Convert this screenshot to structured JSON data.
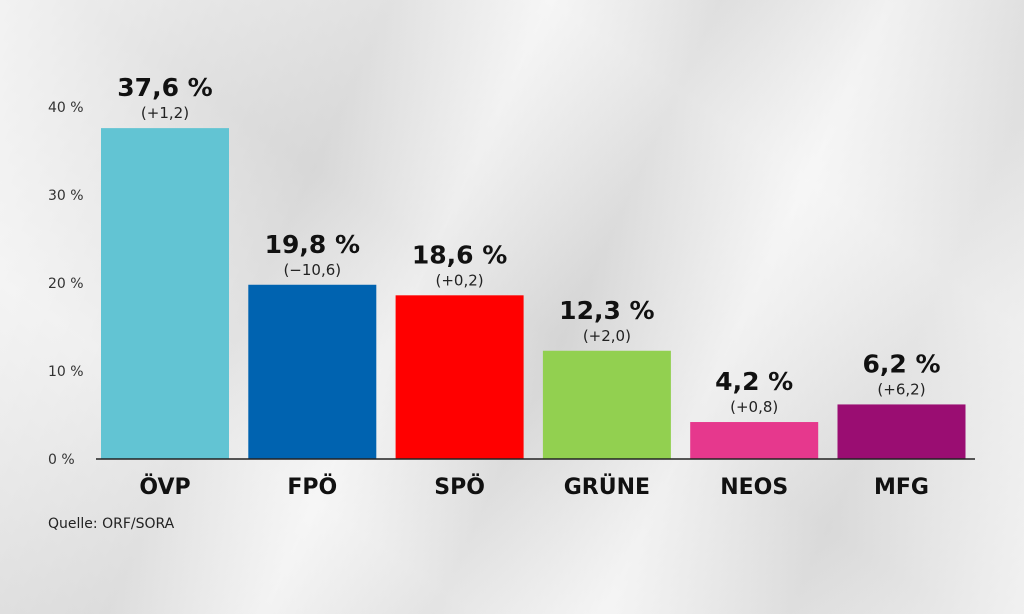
{
  "chart_data": {
    "type": "bar",
    "categories": [
      "ÖVP",
      "FPÖ",
      "SPÖ",
      "GRÜNE",
      "NEOS",
      "MFG"
    ],
    "values": [
      37.6,
      19.8,
      18.6,
      12.3,
      4.2,
      6.2
    ],
    "value_labels": [
      "37,6 %",
      "19,8 %",
      "18,6 %",
      "12,3 %",
      "4,2 %",
      "6,2 %"
    ],
    "change_labels": [
      "(+1,2)",
      "(−10,6)",
      "(+0,2)",
      "(+2,0)",
      "(+0,8)",
      "(+6,2)"
    ],
    "colors": [
      "#62c4d3",
      "#0063b0",
      "#ff0000",
      "#92d050",
      "#e6388d",
      "#9a0d72"
    ],
    "yticks": [
      "0 %",
      "10 %",
      "20 %",
      "30 %",
      "40 %"
    ],
    "ylim": [
      0,
      40
    ],
    "grid": false,
    "title": "",
    "xlabel": "",
    "ylabel": ""
  },
  "source": "Quelle: ORF/SORA"
}
